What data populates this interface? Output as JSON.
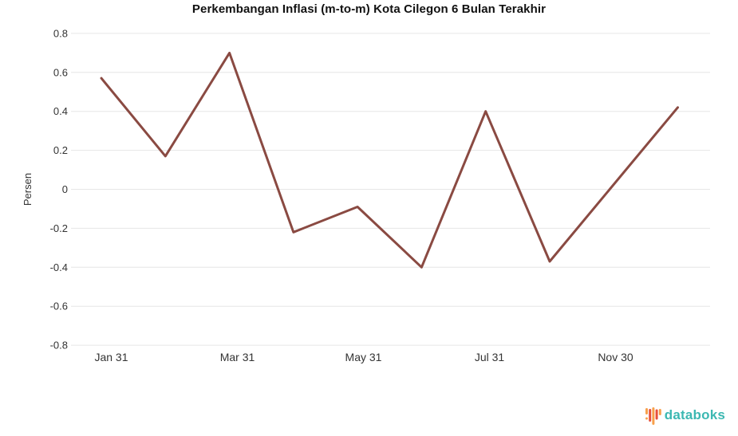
{
  "title": "Perkembangan Inflasi (m-to-m) Kota Cilegon 6 Bulan Terakhir",
  "chart_data": {
    "type": "line",
    "title": "Perkembangan Inflasi (m-to-m) Kota Cilegon 6 Bulan Terakhir",
    "xlabel": "",
    "ylabel": "Persen",
    "ylim": [
      -0.8,
      0.8
    ],
    "yticks": [
      0.8,
      0.6,
      0.4,
      0.2,
      0,
      -0.2,
      -0.4,
      -0.6,
      -0.8
    ],
    "grid": true,
    "legend_position": "none",
    "x_slot_count": 10,
    "xticks": [
      {
        "label": "Jan 31",
        "slot": 0
      },
      {
        "label": "Mar 31",
        "slot": 2
      },
      {
        "label": "May 31",
        "slot": 4
      },
      {
        "label": "Jul 31",
        "slot": 6
      },
      {
        "label": "Nov 30",
        "slot": 8
      }
    ],
    "series": [
      {
        "name": "Inflasi (m-to-m)",
        "color": "#8a4a42",
        "points": [
          {
            "slot": 0,
            "value": 0.57
          },
          {
            "slot": 1,
            "value": 0.17
          },
          {
            "slot": 2,
            "value": 0.7
          },
          {
            "slot": 3,
            "value": -0.22
          },
          {
            "slot": 4,
            "value": -0.09
          },
          {
            "slot": 5,
            "value": -0.4
          },
          {
            "slot": 6,
            "value": 0.4
          },
          {
            "slot": 7,
            "value": -0.37
          },
          {
            "slot": 9,
            "value": 0.42
          }
        ]
      }
    ]
  },
  "branding": {
    "name": "databoks",
    "text_color": "#3cb8b2",
    "icon_bar_colors": [
      "#f7a04b",
      "#e8503a",
      "#f7a04b",
      "#e8503a",
      "#f7a04b"
    ]
  },
  "colors": {
    "background": "#ffffff",
    "gridline": "#e6e6e6",
    "axis_text": "#333333",
    "title_text": "#111111"
  }
}
